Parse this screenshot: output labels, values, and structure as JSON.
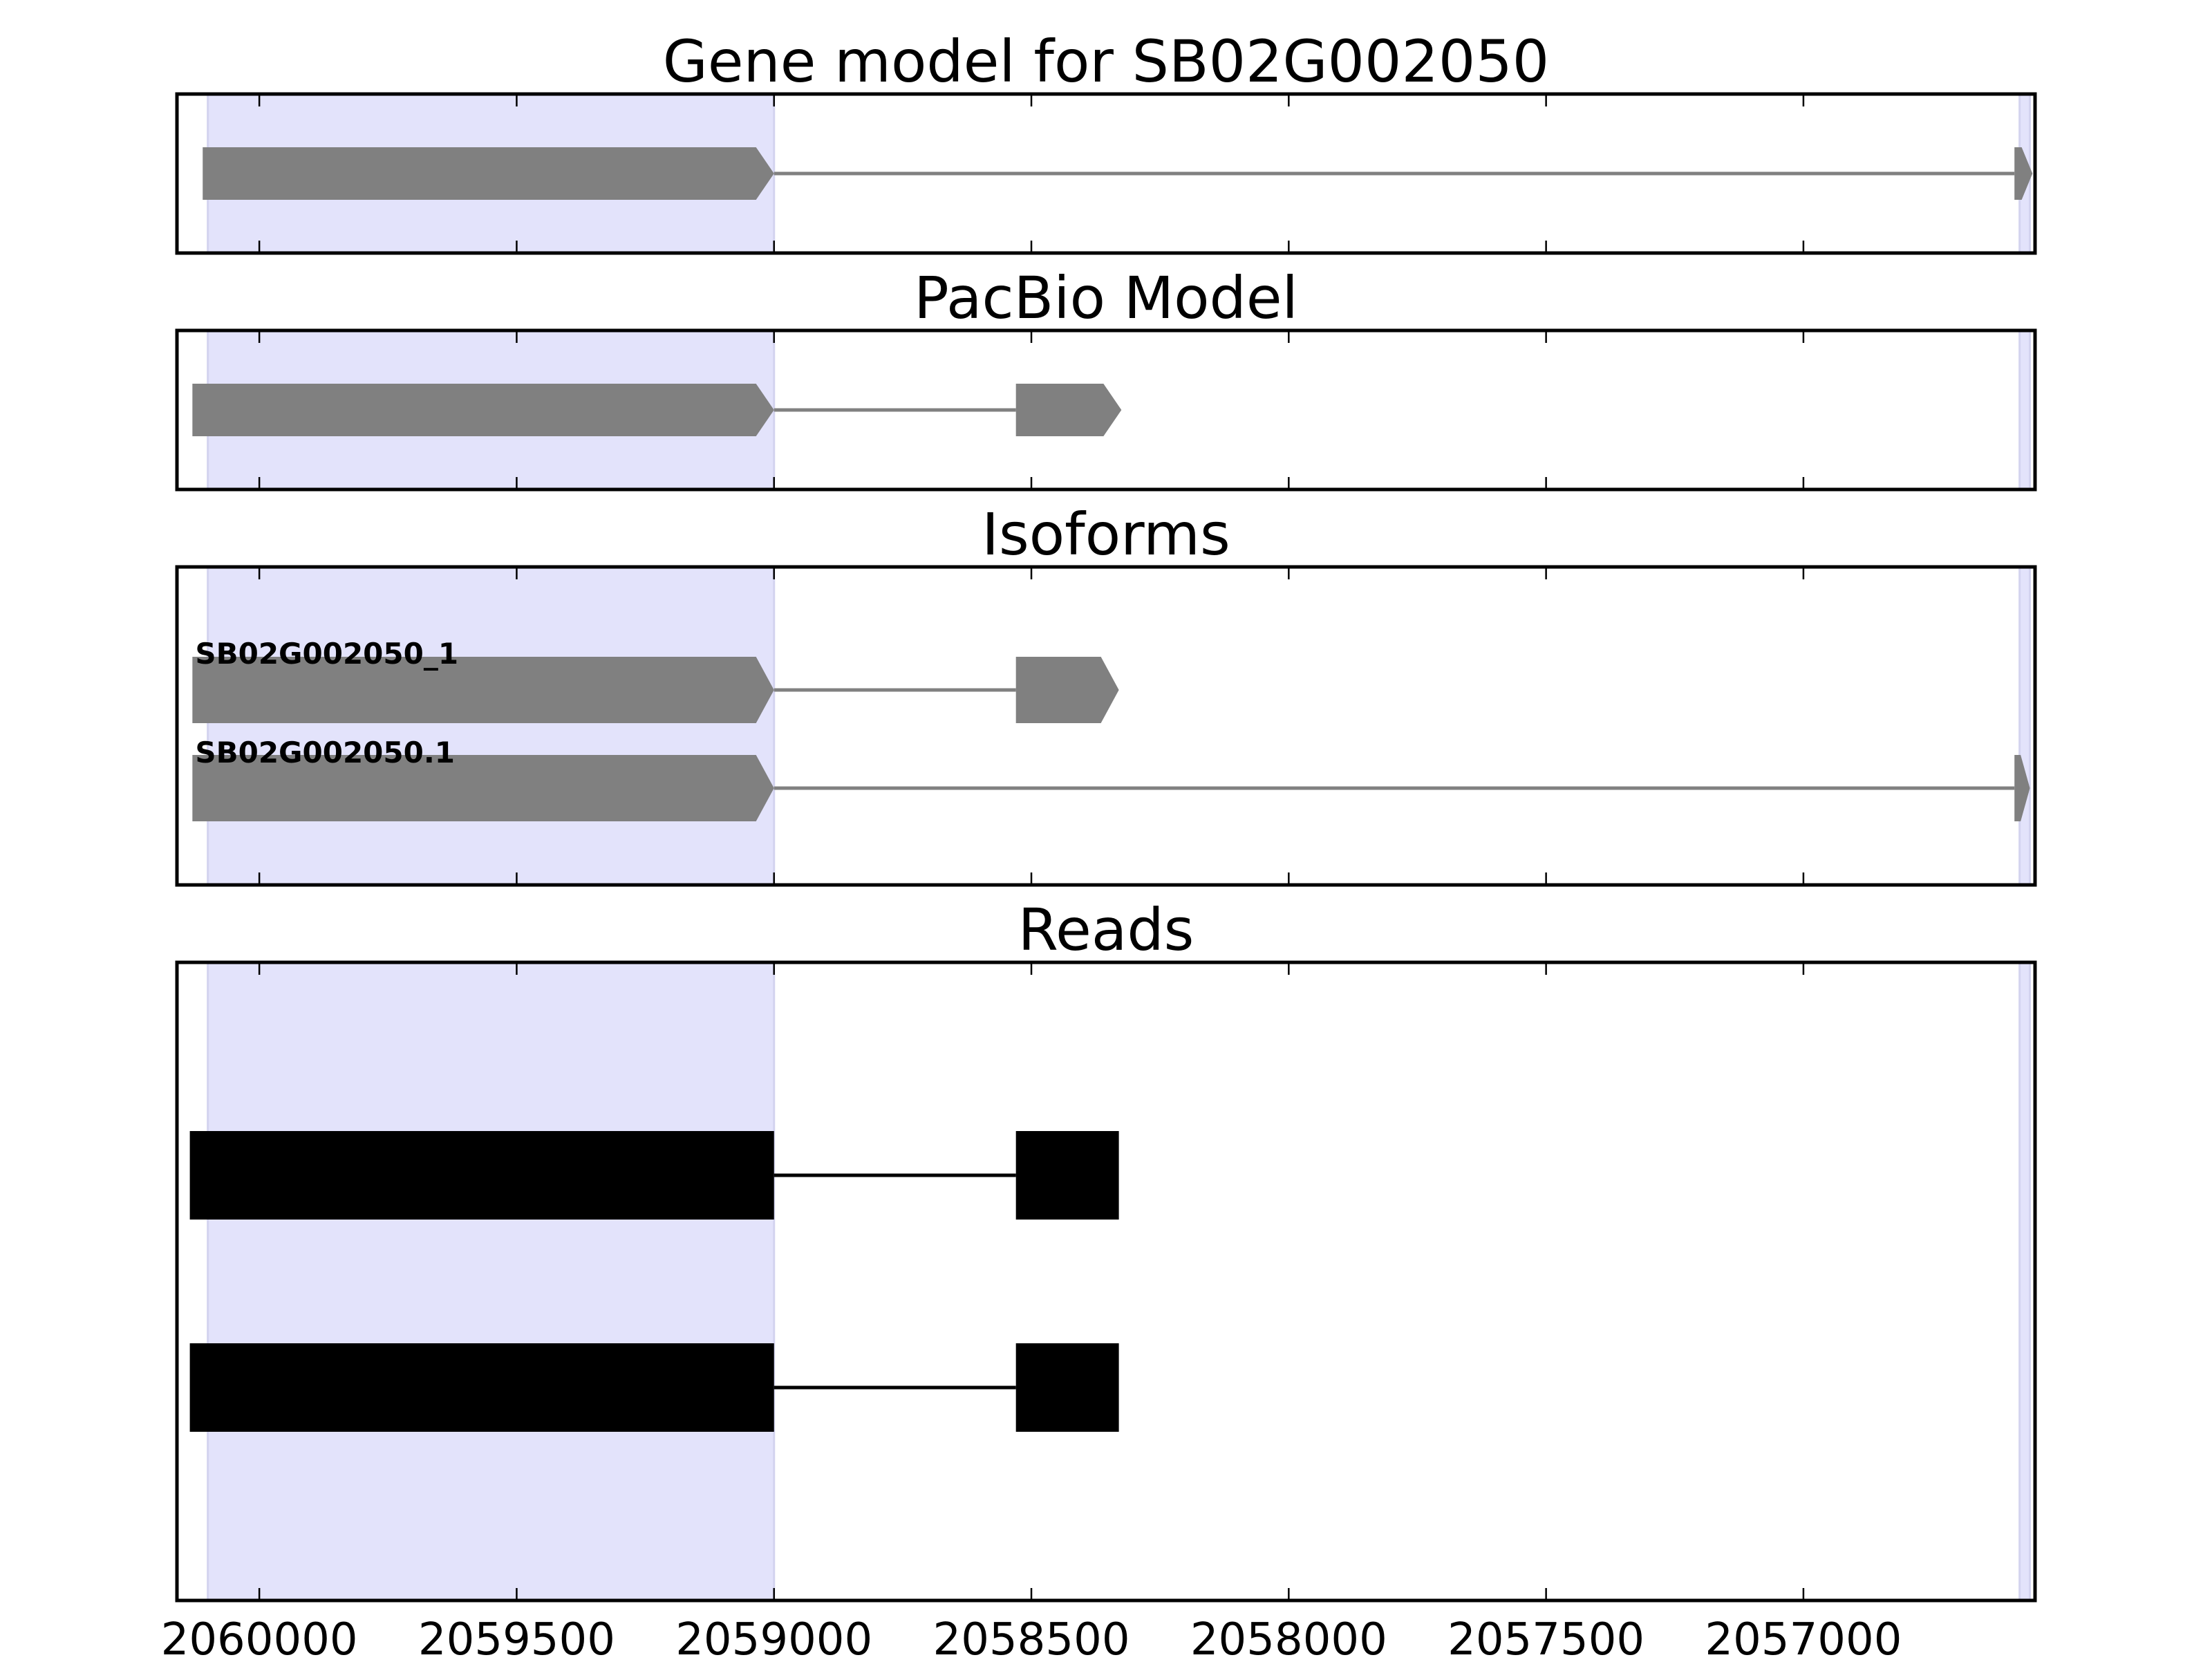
{
  "chart_data": {
    "type": "gene-track",
    "x_axis": {
      "lim": [
        2060160,
        2056550
      ],
      "reversed": true,
      "ticks": [
        2060000,
        2059500,
        2059000,
        2058500,
        2058000,
        2057500,
        2057000
      ],
      "tick_labels": [
        "2060000",
        "2059500",
        "2059000",
        "2058500",
        "2058000",
        "2057500",
        "2057000"
      ]
    },
    "highlight_regions": [
      {
        "start": 2060100,
        "end": 2059000,
        "color": "#e3e3fb"
      },
      {
        "start": 2056580,
        "end": 2056560,
        "color": "#e3e3fb"
      }
    ],
    "panels": [
      {
        "title": "Gene model for SB02G002050",
        "track_color": "#808080",
        "tracks": [
          {
            "label": "",
            "exons": [
              [
                2060110,
                2059000
              ],
              [
                2056590,
                2056555
              ]
            ]
          }
        ]
      },
      {
        "title": "PacBio Model",
        "track_color": "#808080",
        "tracks": [
          {
            "label": "",
            "exons": [
              [
                2060130,
                2059000
              ],
              [
                2058530,
                2058325
              ]
            ]
          }
        ]
      },
      {
        "title": "Isoforms",
        "track_color": "#808080",
        "tracks": [
          {
            "label": "SB02G002050_1",
            "exons": [
              [
                2060130,
                2059000
              ],
              [
                2058530,
                2058330
              ]
            ]
          },
          {
            "label": "SB02G002050.1",
            "exons": [
              [
                2060130,
                2059000
              ],
              [
                2056590,
                2056560
              ]
            ]
          }
        ]
      },
      {
        "title": "Reads",
        "track_color": "#000000",
        "tracks": [
          {
            "label": "",
            "exons": [
              [
                2060135,
                2059000
              ],
              [
                2058530,
                2058330
              ]
            ]
          },
          {
            "label": "",
            "exons": [
              [
                2060135,
                2059000
              ],
              [
                2058530,
                2058330
              ]
            ]
          }
        ]
      }
    ]
  }
}
